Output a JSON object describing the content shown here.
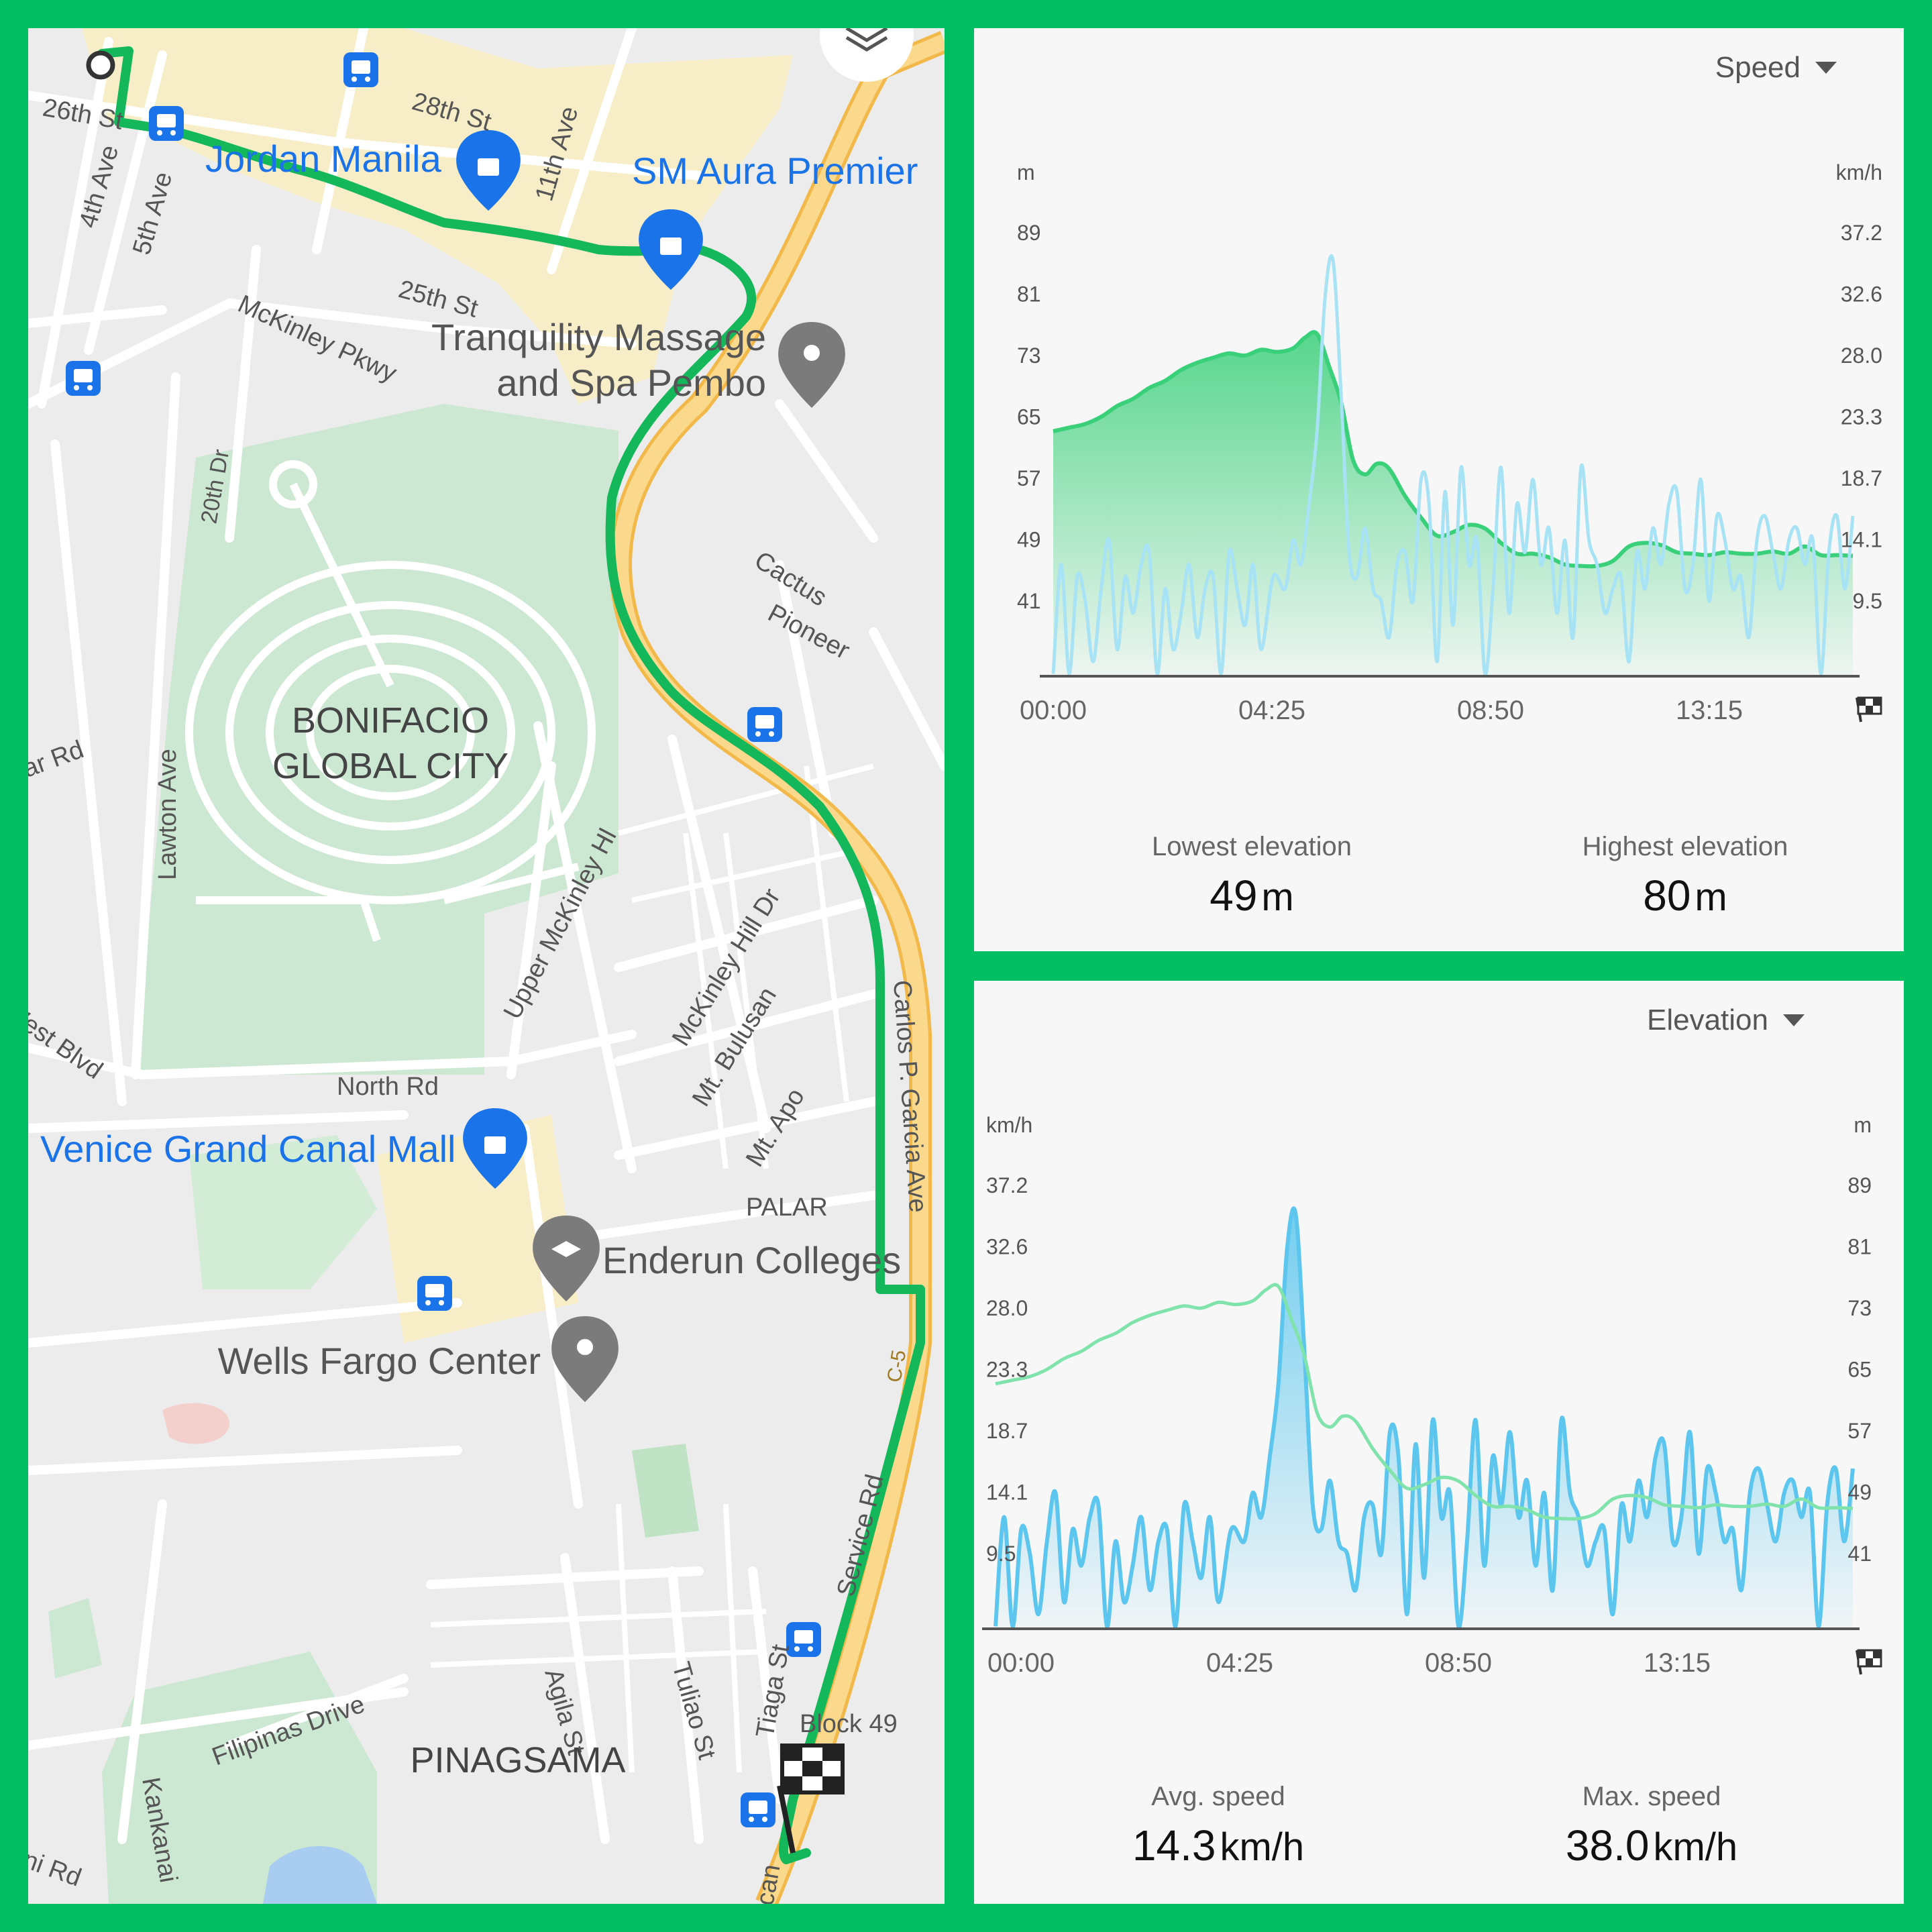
{
  "colors": {
    "accent": "#00bf63",
    "route": "#14b85a",
    "speed": "#5cc6ee",
    "elevation": "#3ad07a",
    "poi_blue": "#1a73e8",
    "highway": "#f6c96b"
  },
  "map": {
    "labels": {
      "st26": "26th St",
      "st28": "28th St",
      "ave4": "4th Ave",
      "ave5": "5th Ave",
      "ave11": "11th Ave",
      "st25": "25th St",
      "mckinley_pkwy": "McKinley Pkwy",
      "dr20": "20th Dr",
      "lawton": "Lawton Ave",
      "lar_rd": "lar Rd",
      "west_blvd": "West Blvd",
      "bgc": [
        "BONIFACIO",
        "GLOBAL CITY"
      ],
      "cactus": "Cactus",
      "pioneer": "Pioneer",
      "upper_mckinley": "Upper McKinley Hl",
      "mckinley_hill": "McKinley Hill Dr",
      "bulusan": "Mt. Bulusan",
      "apo": "Mt. Apo",
      "north_rd": "North Rd",
      "palar": "PALAR",
      "carlos": "Carlos P. Garcia Ave",
      "c5": "C-5",
      "service": "Service Rd",
      "agila": "Agila St",
      "tuliao": "Tuliao St",
      "tiaga": "Tiaga St",
      "block49": "Block 49",
      "pinagsama": "PINAGSAMA",
      "filipinas": "Filipinas Drive",
      "kankanai": "Kankanai",
      "ni_rd": "ni Rd",
      "can": "can"
    },
    "pois": {
      "jordan": "Jordan Manila",
      "sm_aura": "SM Aura Premier",
      "tranquility": [
        "Tranquility Massage",
        "and Spa Pembo"
      ],
      "venice": "Venice Grand Canal Mall",
      "enderun": "Enderun Colleges",
      "wells": "Wells Fargo Center"
    },
    "icons": [
      "bus-stop-icon",
      "shopping-pin-icon",
      "location-pin-icon",
      "school-pin-icon",
      "layers-icon",
      "finish-flag-icon",
      "start-marker-icon"
    ]
  },
  "speed_panel": {
    "dropdown": "Speed",
    "left_unit": "m",
    "right_unit": "km/h",
    "stats": [
      {
        "label": "Lowest elevation",
        "value": "49",
        "unit": "m"
      },
      {
        "label": "Highest elevation",
        "value": "80",
        "unit": "m"
      }
    ]
  },
  "elev_panel": {
    "dropdown": "Elevation",
    "left_unit": "km/h",
    "right_unit": "m",
    "stats": [
      {
        "label": "Avg. speed",
        "value": "14.3",
        "unit": "km/h"
      },
      {
        "label": "Max. speed",
        "value": "38.0",
        "unit": "km/h"
      }
    ]
  },
  "chart_data": [
    {
      "type": "area",
      "title": "",
      "x_ticks": [
        "00:00",
        "04:25",
        "08:50",
        "13:15"
      ],
      "left_axis": {
        "unit": "m",
        "ticks": [
          "89",
          "81",
          "73",
          "65",
          "57",
          "49",
          "41"
        ],
        "ylim": [
          33,
          95
        ]
      },
      "right_axis": {
        "unit": "km/h",
        "ticks": [
          "37.2",
          "32.6",
          "28.0",
          "23.3",
          "18.7",
          "14.1",
          "9.5"
        ],
        "ylim": [
          4.8,
          41.6
        ]
      },
      "xlim": [
        0,
        1000
      ],
      "series": [
        {
          "name": "",
          "axis": "left",
          "style": "filled",
          "color": "#3ad07a",
          "x": [
            0,
            20,
            40,
            60,
            80,
            100,
            120,
            140,
            160,
            180,
            200,
            220,
            240,
            260,
            280,
            300,
            315,
            330,
            345,
            360,
            375,
            390,
            405,
            420,
            440,
            460,
            480,
            500,
            520,
            540,
            560,
            580,
            600,
            620,
            640,
            660,
            680,
            700,
            720,
            740,
            760,
            780,
            800,
            820,
            840,
            860,
            880,
            900,
            920,
            940,
            960,
            980,
            1000
          ],
          "y": [
            67,
            67.5,
            68,
            69,
            70.5,
            71.5,
            73,
            74,
            75.5,
            76.5,
            77.2,
            77.8,
            77.5,
            78.3,
            78,
            78.5,
            80,
            80.5,
            76,
            71,
            63,
            61,
            62.5,
            61.8,
            58,
            55,
            52.5,
            53,
            54,
            53.5,
            51.5,
            50,
            50,
            49.5,
            48.5,
            48.3,
            48.3,
            49,
            51,
            51.5,
            51.2,
            50.2,
            50,
            49.8,
            50.2,
            50,
            50,
            50.3,
            50,
            51,
            49.8,
            49.8,
            49.7
          ]
        },
        {
          "name": "",
          "axis": "right",
          "style": "line",
          "color": "#a8e3f5",
          "x": [
            0,
            10,
            20,
            30,
            40,
            50,
            60,
            70,
            80,
            90,
            100,
            110,
            120,
            130,
            140,
            150,
            160,
            170,
            180,
            190,
            200,
            210,
            220,
            230,
            240,
            250,
            260,
            275,
            290,
            300,
            310,
            320,
            330,
            340,
            350,
            360,
            370,
            380,
            390,
            400,
            410,
            420,
            430,
            440,
            450,
            460,
            470,
            480,
            490,
            500,
            510,
            520,
            530,
            540,
            550,
            560,
            570,
            580,
            590,
            600,
            610,
            620,
            630,
            640,
            650,
            660,
            670,
            680,
            690,
            700,
            710,
            720,
            730,
            740,
            750,
            760,
            770,
            780,
            790,
            800,
            810,
            820,
            830,
            840,
            850,
            860,
            870,
            880,
            890,
            900,
            910,
            920,
            930,
            940,
            950,
            960,
            970,
            980,
            990,
            1000
          ],
          "y": [
            5,
            14,
            5,
            13,
            11,
            6,
            12,
            16,
            7,
            13,
            10,
            14,
            15,
            5,
            12,
            7,
            10,
            14,
            8,
            12,
            13,
            5,
            15,
            12,
            9,
            14,
            7,
            13,
            12,
            16,
            14,
            19,
            25,
            36,
            39,
            28,
            15,
            13,
            17,
            12,
            11,
            8,
            14,
            15,
            11,
            21,
            19,
            6,
            20,
            9,
            22,
            14,
            16,
            5,
            12,
            22,
            10,
            19,
            15,
            21,
            14,
            17,
            10,
            16,
            8,
            22,
            16,
            14,
            10,
            12,
            13,
            6,
            15,
            12,
            17,
            14,
            19,
            20,
            12,
            14,
            21,
            11,
            18,
            16,
            12,
            13,
            8,
            16,
            18,
            15,
            12,
            16,
            17,
            14,
            16,
            5,
            15,
            18,
            12,
            18
          ]
        }
      ]
    },
    {
      "type": "area",
      "title": "",
      "x_ticks": [
        "00:00",
        "04:25",
        "08:50",
        "13:15"
      ],
      "left_axis": {
        "unit": "km/h",
        "ticks": [
          "37.2",
          "32.6",
          "28.0",
          "23.3",
          "18.7",
          "14.1",
          "9.5"
        ],
        "ylim": [
          4.8,
          41.6
        ]
      },
      "right_axis": {
        "unit": "m",
        "ticks": [
          "89",
          "81",
          "73",
          "65",
          "57",
          "49",
          "41"
        ],
        "ylim": [
          33,
          95
        ]
      },
      "xlim": [
        0,
        1000
      ],
      "series": [
        {
          "name": "",
          "axis": "left",
          "style": "filled",
          "color": "#5cc6ee",
          "x": [
            0,
            10,
            20,
            30,
            40,
            50,
            60,
            70,
            80,
            90,
            100,
            110,
            120,
            130,
            140,
            150,
            160,
            170,
            180,
            190,
            200,
            210,
            220,
            230,
            240,
            250,
            260,
            275,
            290,
            300,
            310,
            320,
            330,
            340,
            350,
            360,
            370,
            380,
            390,
            400,
            410,
            420,
            430,
            440,
            450,
            460,
            470,
            480,
            490,
            500,
            510,
            520,
            530,
            540,
            550,
            560,
            570,
            580,
            590,
            600,
            610,
            620,
            630,
            640,
            650,
            660,
            670,
            680,
            690,
            700,
            710,
            720,
            730,
            740,
            750,
            760,
            770,
            780,
            790,
            800,
            810,
            820,
            830,
            840,
            850,
            860,
            870,
            880,
            890,
            900,
            910,
            920,
            930,
            940,
            950,
            960,
            970,
            980,
            990,
            1000
          ],
          "y": [
            5,
            14,
            5,
            13,
            11,
            6,
            12,
            16,
            7,
            13,
            10,
            14,
            15,
            5,
            12,
            7,
            10,
            14,
            8,
            12,
            13,
            5,
            15,
            12,
            9,
            14,
            7,
            13,
            12,
            16,
            14,
            19,
            25,
            36,
            39,
            28,
            15,
            13,
            17,
            12,
            11,
            8,
            14,
            15,
            11,
            21,
            19,
            6,
            20,
            9,
            22,
            14,
            16,
            5,
            12,
            22,
            10,
            19,
            15,
            21,
            14,
            17,
            10,
            16,
            8,
            22,
            16,
            14,
            10,
            12,
            13,
            6,
            15,
            12,
            17,
            14,
            19,
            20,
            12,
            14,
            21,
            11,
            18,
            16,
            12,
            13,
            8,
            16,
            18,
            15,
            12,
            16,
            17,
            14,
            16,
            5,
            15,
            18,
            12,
            18
          ]
        },
        {
          "name": "",
          "axis": "right",
          "style": "line",
          "color": "#7fe3ab",
          "x": [
            0,
            20,
            40,
            60,
            80,
            100,
            120,
            140,
            160,
            180,
            200,
            220,
            240,
            260,
            280,
            300,
            315,
            330,
            345,
            360,
            375,
            390,
            405,
            420,
            440,
            460,
            480,
            500,
            520,
            540,
            560,
            580,
            600,
            620,
            640,
            660,
            680,
            700,
            720,
            740,
            760,
            780,
            800,
            820,
            840,
            860,
            880,
            900,
            920,
            940,
            960,
            980,
            1000
          ],
          "y": [
            67,
            67.5,
            68,
            69,
            70.5,
            71.5,
            73,
            74,
            75.5,
            76.5,
            77.2,
            77.8,
            77.5,
            78.3,
            78,
            78.5,
            80,
            80.5,
            76,
            71,
            63,
            61,
            62.5,
            61.8,
            58,
            55,
            52.5,
            53,
            54,
            53.5,
            51.5,
            50,
            50,
            49.5,
            48.5,
            48.3,
            48.3,
            49,
            51,
            51.5,
            51.2,
            50.2,
            50,
            49.8,
            50.2,
            50,
            50,
            50.3,
            50,
            51,
            49.8,
            49.8,
            49.7
          ]
        }
      ]
    }
  ]
}
